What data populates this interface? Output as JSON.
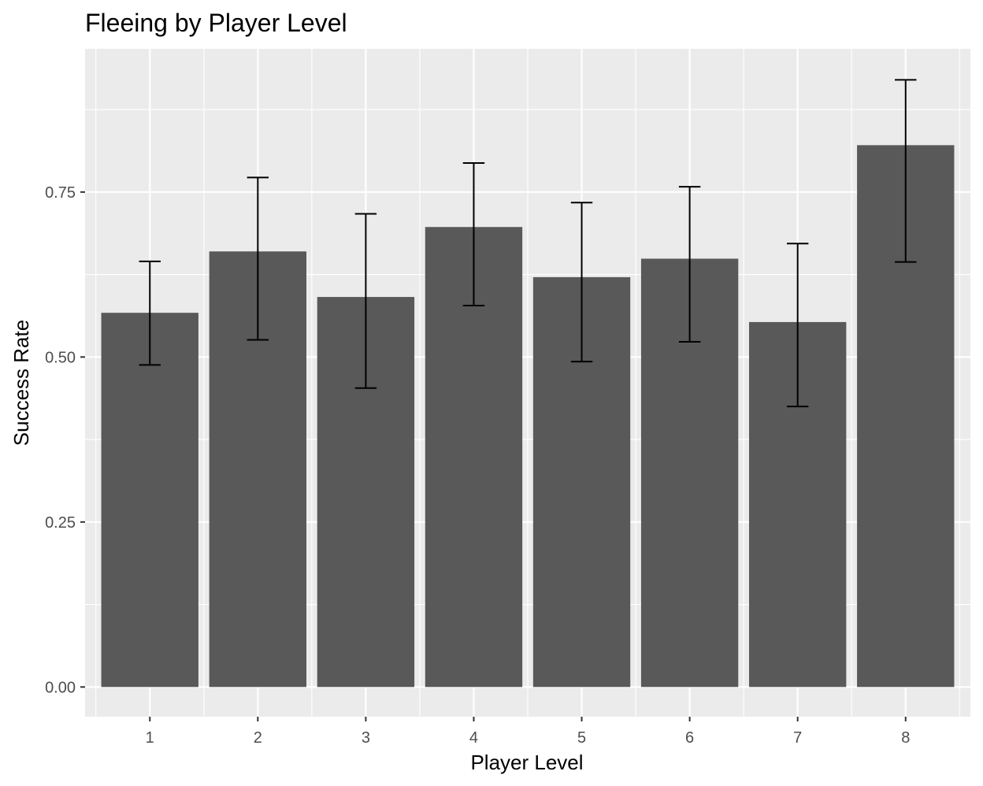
{
  "chart_data": {
    "type": "bar",
    "title": "Fleeing by Player Level",
    "xlabel": "Player Level",
    "ylabel": "Success Rate",
    "categories": [
      "1",
      "2",
      "3",
      "4",
      "5",
      "6",
      "7",
      "8"
    ],
    "values": [
      0.567,
      0.66,
      0.591,
      0.697,
      0.621,
      0.649,
      0.553,
      0.821
    ],
    "error_low": [
      0.488,
      0.526,
      0.453,
      0.578,
      0.493,
      0.523,
      0.425,
      0.644
    ],
    "error_high": [
      0.645,
      0.772,
      0.717,
      0.794,
      0.734,
      0.758,
      0.672,
      0.92
    ],
    "y_ticks": [
      "0.00",
      "0.25",
      "0.50",
      "0.75"
    ],
    "ylim": [
      -0.045,
      0.967
    ],
    "grid": true,
    "legend": "none",
    "colors": {
      "bar": "#595959",
      "panel": "#ebebeb",
      "grid": "#ffffff",
      "error_bar": "#000000"
    }
  }
}
